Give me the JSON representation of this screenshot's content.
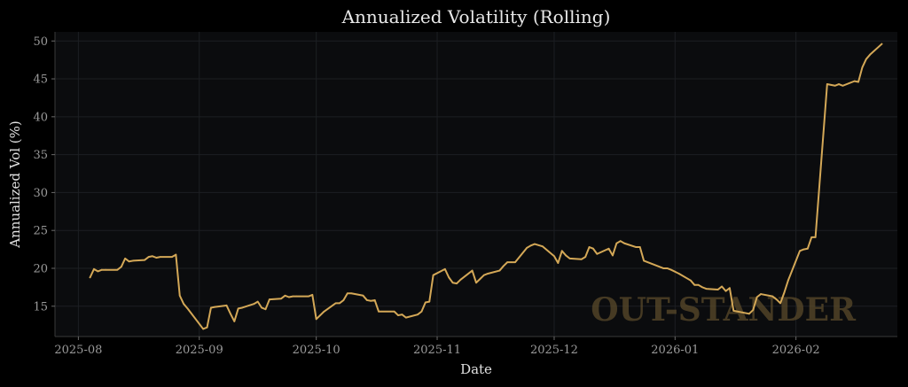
{
  "chart_data": {
    "type": "line",
    "title": "Annualized Volatility (Rolling)",
    "xlabel": "Date",
    "ylabel": "Annualized Vol (%)",
    "watermark": "OUT-STANDER",
    "line_color": "#d4a857",
    "background": "#0b0c0e",
    "grid": true,
    "xlim": [
      "2025-07-26",
      "2026-02-27"
    ],
    "ylim": [
      11.0,
      51.2
    ],
    "x_ticks": [
      "2025-08-01",
      "2025-09-01",
      "2025-10-01",
      "2025-11-01",
      "2025-12-01",
      "2026-01-01",
      "2026-02-01"
    ],
    "x_tick_labels": [
      "2025-08",
      "2025-09",
      "2025-10",
      "2025-11",
      "2025-12",
      "2026-01",
      "2026-02"
    ],
    "y_ticks": [
      15,
      20,
      25,
      30,
      35,
      40,
      45,
      50
    ],
    "y_tick_labels": [
      "15",
      "20",
      "25",
      "30",
      "35",
      "40",
      "45",
      "50"
    ],
    "series": [
      {
        "points": [
          [
            "2025-08-04",
            18.8
          ],
          [
            "2025-08-05",
            19.9
          ],
          [
            "2025-08-06",
            19.6
          ],
          [
            "2025-08-07",
            19.8
          ],
          [
            "2025-08-08",
            19.8
          ],
          [
            "2025-08-11",
            19.8
          ],
          [
            "2025-08-12",
            20.2
          ],
          [
            "2025-08-13",
            21.3
          ],
          [
            "2025-08-14",
            20.9
          ],
          [
            "2025-08-15",
            21.0
          ],
          [
            "2025-08-18",
            21.1
          ],
          [
            "2025-08-19",
            21.5
          ],
          [
            "2025-08-20",
            21.6
          ],
          [
            "2025-08-21",
            21.4
          ],
          [
            "2025-08-22",
            21.5
          ],
          [
            "2025-08-25",
            21.5
          ],
          [
            "2025-08-26",
            21.8
          ],
          [
            "2025-08-27",
            16.4
          ],
          [
            "2025-08-28",
            15.3
          ],
          [
            "2025-08-29",
            14.7
          ],
          [
            "2025-09-02",
            12.0
          ],
          [
            "2025-09-03",
            12.2
          ],
          [
            "2025-09-04",
            14.8
          ],
          [
            "2025-09-05",
            14.9
          ],
          [
            "2025-09-08",
            15.1
          ],
          [
            "2025-09-09",
            14.0
          ],
          [
            "2025-09-10",
            13.0
          ],
          [
            "2025-09-11",
            14.7
          ],
          [
            "2025-09-12",
            14.8
          ],
          [
            "2025-09-15",
            15.3
          ],
          [
            "2025-09-16",
            15.6
          ],
          [
            "2025-09-17",
            14.8
          ],
          [
            "2025-09-18",
            14.6
          ],
          [
            "2025-09-19",
            15.9
          ],
          [
            "2025-09-22",
            16.0
          ],
          [
            "2025-09-23",
            16.4
          ],
          [
            "2025-09-24",
            16.2
          ],
          [
            "2025-09-25",
            16.3
          ],
          [
            "2025-09-26",
            16.3
          ],
          [
            "2025-09-29",
            16.3
          ],
          [
            "2025-09-30",
            16.5
          ],
          [
            "2025-10-01",
            13.3
          ],
          [
            "2025-10-02",
            13.8
          ],
          [
            "2025-10-03",
            14.3
          ],
          [
            "2025-10-06",
            15.4
          ],
          [
            "2025-10-07",
            15.4
          ],
          [
            "2025-10-08",
            15.8
          ],
          [
            "2025-10-09",
            16.7
          ],
          [
            "2025-10-10",
            16.7
          ],
          [
            "2025-10-13",
            16.4
          ],
          [
            "2025-10-14",
            15.8
          ],
          [
            "2025-10-15",
            15.7
          ],
          [
            "2025-10-16",
            15.8
          ],
          [
            "2025-10-17",
            14.3
          ],
          [
            "2025-10-20",
            14.3
          ],
          [
            "2025-10-21",
            14.3
          ],
          [
            "2025-10-22",
            13.8
          ],
          [
            "2025-10-23",
            13.9
          ],
          [
            "2025-10-24",
            13.5
          ],
          [
            "2025-10-27",
            13.9
          ],
          [
            "2025-10-28",
            14.3
          ],
          [
            "2025-10-29",
            15.5
          ],
          [
            "2025-10-30",
            15.6
          ],
          [
            "2025-10-31",
            19.1
          ],
          [
            "2025-11-03",
            19.9
          ],
          [
            "2025-11-04",
            18.8
          ],
          [
            "2025-11-05",
            18.1
          ],
          [
            "2025-11-06",
            18.0
          ],
          [
            "2025-11-07",
            18.5
          ],
          [
            "2025-11-10",
            19.7
          ],
          [
            "2025-11-11",
            18.1
          ],
          [
            "2025-11-12",
            18.6
          ],
          [
            "2025-11-13",
            19.1
          ],
          [
            "2025-11-14",
            19.3
          ],
          [
            "2025-11-17",
            19.7
          ],
          [
            "2025-11-18",
            20.3
          ],
          [
            "2025-11-19",
            20.8
          ],
          [
            "2025-11-20",
            20.8
          ],
          [
            "2025-11-21",
            20.8
          ],
          [
            "2025-11-24",
            22.7
          ],
          [
            "2025-11-25",
            23.0
          ],
          [
            "2025-11-26",
            23.2
          ],
          [
            "2025-11-28",
            22.9
          ],
          [
            "2025-12-01",
            21.6
          ],
          [
            "2025-12-02",
            20.7
          ],
          [
            "2025-12-03",
            22.3
          ],
          [
            "2025-12-04",
            21.7
          ],
          [
            "2025-12-05",
            21.3
          ],
          [
            "2025-12-08",
            21.2
          ],
          [
            "2025-12-09",
            21.5
          ],
          [
            "2025-12-10",
            22.8
          ],
          [
            "2025-12-11",
            22.6
          ],
          [
            "2025-12-12",
            21.9
          ],
          [
            "2025-12-15",
            22.6
          ],
          [
            "2025-12-16",
            21.7
          ],
          [
            "2025-12-17",
            23.3
          ],
          [
            "2025-12-18",
            23.6
          ],
          [
            "2025-12-19",
            23.3
          ],
          [
            "2025-12-22",
            22.8
          ],
          [
            "2025-12-23",
            22.8
          ],
          [
            "2025-12-24",
            21.0
          ],
          [
            "2025-12-26",
            20.6
          ],
          [
            "2025-12-29",
            20.0
          ],
          [
            "2025-12-30",
            20.0
          ],
          [
            "2025-12-31",
            19.8
          ],
          [
            "2026-01-02",
            19.3
          ],
          [
            "2026-01-05",
            18.4
          ],
          [
            "2026-01-06",
            17.8
          ],
          [
            "2026-01-07",
            17.8
          ],
          [
            "2026-01-08",
            17.5
          ],
          [
            "2026-01-09",
            17.3
          ],
          [
            "2026-01-12",
            17.2
          ],
          [
            "2026-01-13",
            17.6
          ],
          [
            "2026-01-14",
            17.0
          ],
          [
            "2026-01-15",
            17.4
          ],
          [
            "2026-01-16",
            14.4
          ],
          [
            "2026-01-20",
            14.0
          ],
          [
            "2026-01-21",
            14.5
          ],
          [
            "2026-01-22",
            16.2
          ],
          [
            "2026-01-23",
            16.6
          ],
          [
            "2026-01-26",
            16.3
          ],
          [
            "2026-01-27",
            15.9
          ],
          [
            "2026-01-28",
            15.4
          ],
          [
            "2026-01-29",
            16.8
          ],
          [
            "2026-01-30",
            18.4
          ],
          [
            "2026-02-02",
            22.3
          ],
          [
            "2026-02-03",
            22.5
          ],
          [
            "2026-02-04",
            22.6
          ],
          [
            "2026-02-05",
            24.1
          ],
          [
            "2026-02-06",
            24.1
          ],
          [
            "2026-02-09",
            44.3
          ],
          [
            "2026-02-10",
            44.2
          ],
          [
            "2026-02-11",
            44.1
          ],
          [
            "2026-02-12",
            44.3
          ],
          [
            "2026-02-13",
            44.1
          ],
          [
            "2026-02-16",
            44.7
          ],
          [
            "2026-02-17",
            44.6
          ],
          [
            "2026-02-18",
            46.5
          ],
          [
            "2026-02-19",
            47.6
          ],
          [
            "2026-02-20",
            48.2
          ],
          [
            "2026-02-23",
            49.6
          ]
        ]
      }
    ]
  }
}
